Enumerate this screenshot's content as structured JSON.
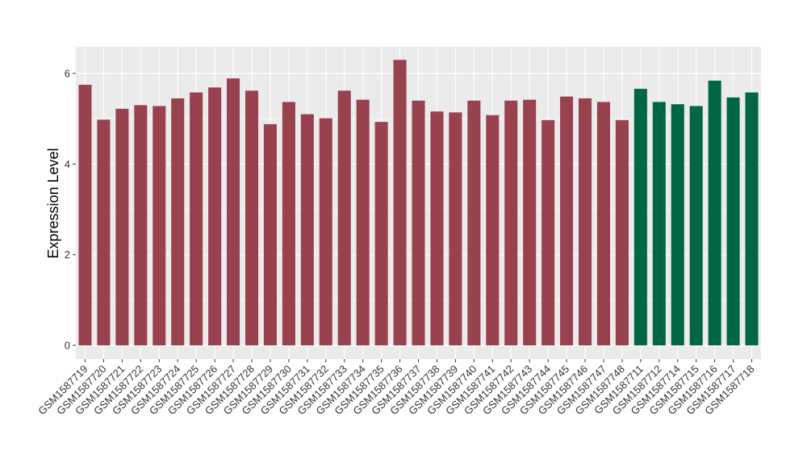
{
  "chart_data": {
    "type": "bar",
    "title": "",
    "xlabel": "",
    "ylabel": "Expression Level",
    "ylim": [
      0,
      6.6
    ],
    "yticks": [
      0,
      2,
      4,
      6
    ],
    "grid": true,
    "legend": "none",
    "colors": {
      "group1": "#99424f",
      "group2": "#006644",
      "panel": "#ebebeb",
      "grid": "#ffffff"
    },
    "categories": [
      "GSM1587719",
      "GSM1587720",
      "GSM1587721",
      "GSM1587722",
      "GSM1587723",
      "GSM1587724",
      "GSM1587725",
      "GSM1587726",
      "GSM1587727",
      "GSM1587728",
      "GSM1587729",
      "GSM1587730",
      "GSM1587731",
      "GSM1587732",
      "GSM1587733",
      "GSM1587734",
      "GSM1587735",
      "GSM1587736",
      "GSM1587737",
      "GSM1587738",
      "GSM1587739",
      "GSM1587740",
      "GSM1587741",
      "GSM1587742",
      "GSM1587743",
      "GSM1587744",
      "GSM1587745",
      "GSM1587746",
      "GSM1587747",
      "GSM1587748",
      "GSM1587711",
      "GSM1587712",
      "GSM1587714",
      "GSM1587715",
      "GSM1587716",
      "GSM1587717",
      "GSM1587718"
    ],
    "values": [
      5.75,
      4.98,
      5.22,
      5.3,
      5.28,
      5.45,
      5.58,
      5.69,
      5.89,
      5.62,
      4.88,
      5.37,
      5.1,
      5.01,
      5.62,
      5.42,
      4.93,
      6.3,
      5.4,
      5.16,
      5.14,
      5.4,
      5.08,
      5.4,
      5.42,
      4.97,
      5.49,
      5.45,
      5.37,
      4.97,
      5.66,
      5.37,
      5.32,
      5.28,
      5.84,
      5.47,
      5.58
    ],
    "groups": [
      "group1",
      "group1",
      "group1",
      "group1",
      "group1",
      "group1",
      "group1",
      "group1",
      "group1",
      "group1",
      "group1",
      "group1",
      "group1",
      "group1",
      "group1",
      "group1",
      "group1",
      "group1",
      "group1",
      "group1",
      "group1",
      "group1",
      "group1",
      "group1",
      "group1",
      "group1",
      "group1",
      "group1",
      "group1",
      "group1",
      "group2",
      "group2",
      "group2",
      "group2",
      "group2",
      "group2",
      "group2"
    ]
  }
}
